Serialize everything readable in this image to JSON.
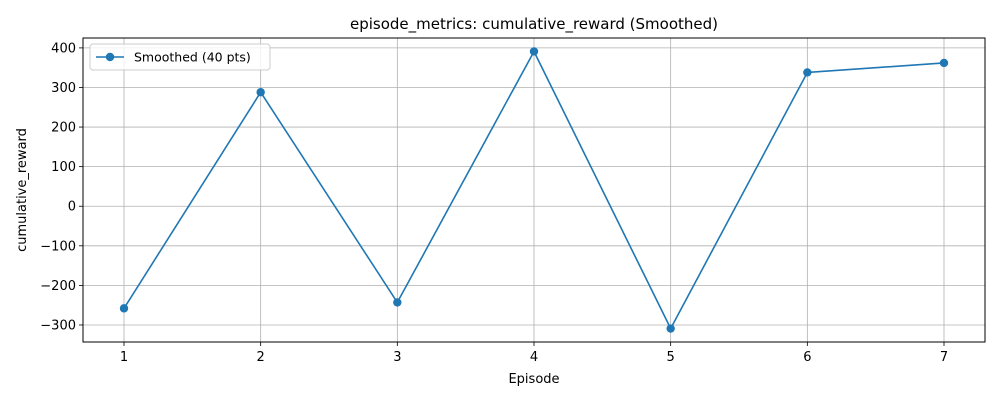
{
  "chart_data": {
    "type": "line",
    "title": "episode_metrics: cumulative_reward (Smoothed)",
    "xlabel": "Episode",
    "ylabel": "cumulative_reward",
    "x": [
      1,
      2,
      3,
      4,
      5,
      6,
      7
    ],
    "series": [
      {
        "name": "Smoothed (40 pts)",
        "values": [
          -258,
          288,
          -243,
          391,
          -309,
          338,
          362
        ],
        "color": "#1f77b4",
        "marker": "circle"
      }
    ],
    "x_ticks": [
      1,
      2,
      3,
      4,
      5,
      6,
      7
    ],
    "x_tick_labels": [
      "1",
      "2",
      "3",
      "4",
      "5",
      "6",
      "7"
    ],
    "y_ticks": [
      -300,
      -200,
      -100,
      0,
      100,
      200,
      300,
      400
    ],
    "y_tick_labels": [
      "−300",
      "−200",
      "−100",
      "0",
      "100",
      "200",
      "300",
      "400"
    ],
    "xlim": [
      0.7,
      7.3
    ],
    "ylim": [
      -343,
      425
    ],
    "grid": true,
    "legend_position": "top-left"
  }
}
